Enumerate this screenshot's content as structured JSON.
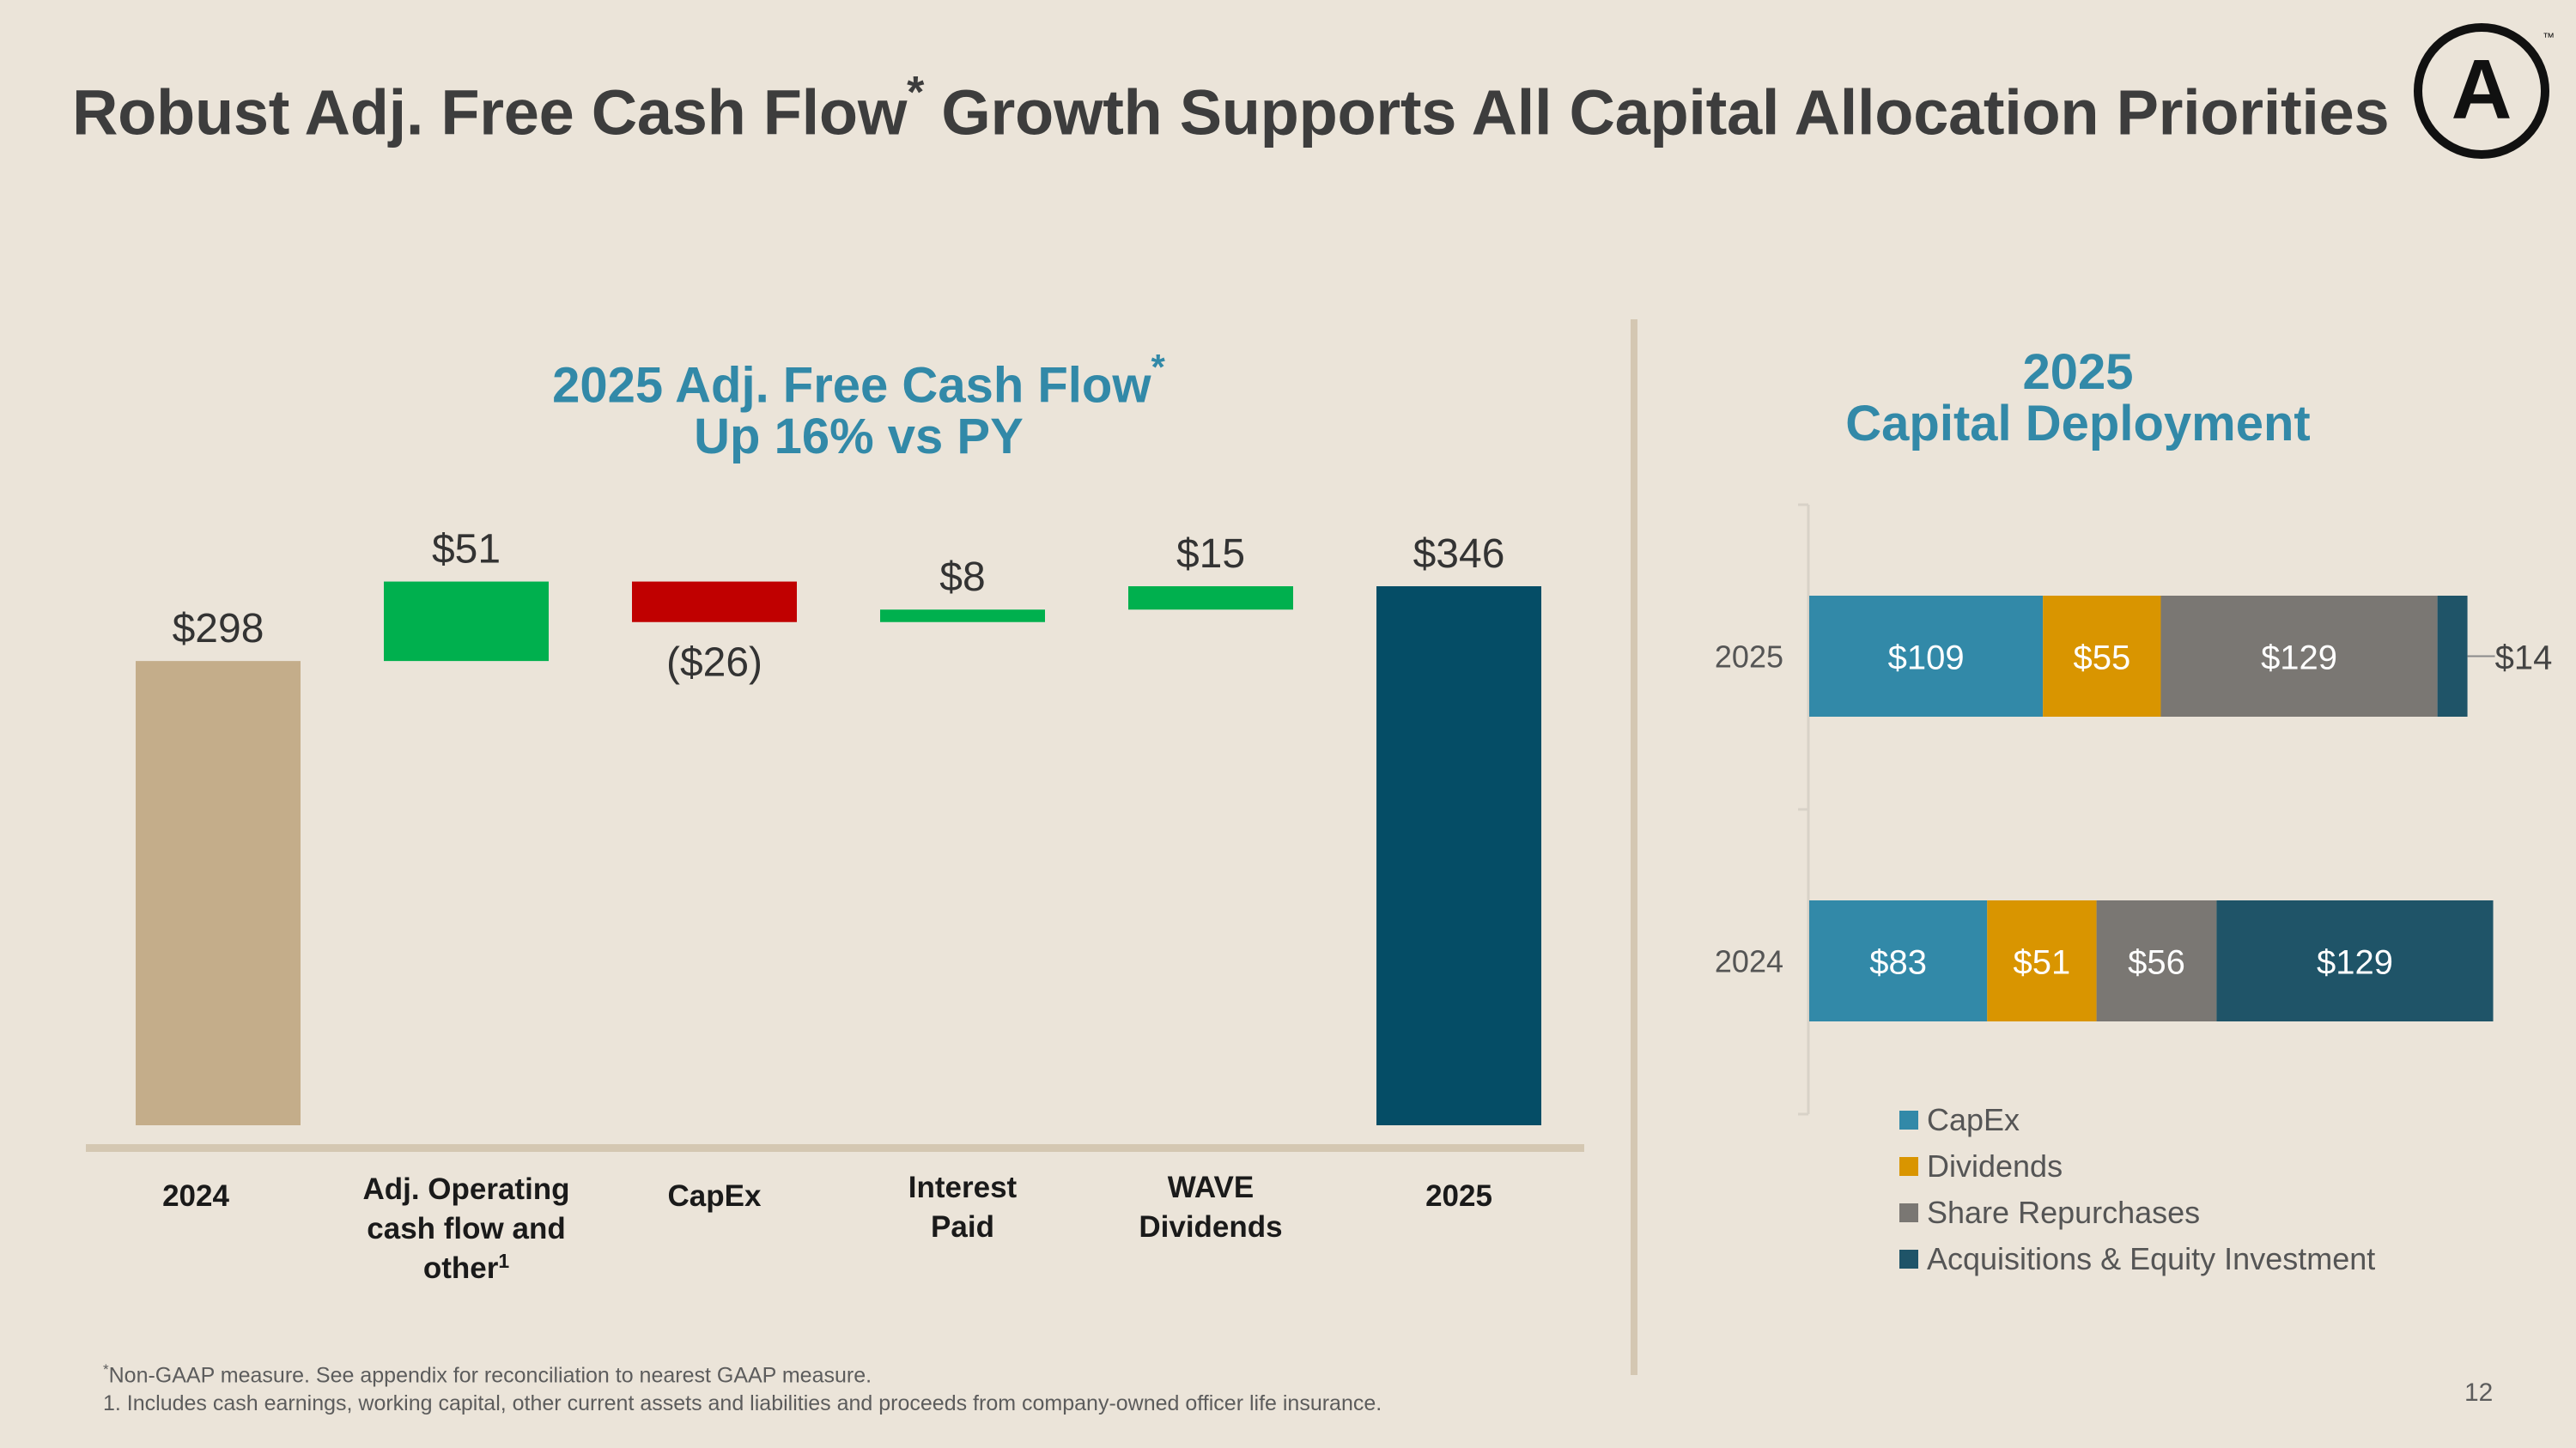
{
  "page": {
    "title": "Robust Adj. Free Cash Flow",
    "title_mark": "*",
    "title_rest": " Growth Supports All Capital Allocation Priorities",
    "logo_letter": "A",
    "logo_tm": "™",
    "page_number": "12"
  },
  "footnotes": {
    "mark": "*",
    "note1": "Non-GAAP measure. See appendix for reconciliation to nearest GAAP measure.",
    "note2": "1. Includes cash earnings, working capital, other current assets and liabilities and proceeds from company-owned officer life insurance."
  },
  "chart_data": [
    {
      "type": "bar",
      "subtype": "waterfall",
      "title_line1": "2025 Adj. Free Cash Flow",
      "title_mark": "*",
      "title_line2": "Up 16% vs PY",
      "units": "$M",
      "steps": [
        {
          "name": "2024",
          "label_lines": [
            "2024"
          ],
          "kind": "total",
          "value": 298,
          "display": "$298",
          "color": "#c4ad8a"
        },
        {
          "name": "adj-operating-cash-flow",
          "label_lines": [
            "Adj. Operating",
            "cash flow and",
            "other"
          ],
          "label_sup": "1",
          "kind": "delta",
          "value": 51,
          "display": "$51",
          "color": "#00b04e"
        },
        {
          "name": "capex",
          "label_lines": [
            "CapEx"
          ],
          "kind": "delta",
          "value": -26,
          "display": "($26)",
          "color": "#c00000"
        },
        {
          "name": "interest-paid",
          "label_lines": [
            "Interest",
            "Paid"
          ],
          "kind": "delta",
          "value": 8,
          "display": "$8",
          "color": "#00b04e"
        },
        {
          "name": "wave-dividends",
          "label_lines": [
            "WAVE",
            "Dividends"
          ],
          "kind": "delta",
          "value": 15,
          "display": "$15",
          "color": "#00b04e"
        },
        {
          "name": "2025",
          "label_lines": [
            "2025"
          ],
          "kind": "total",
          "value": 346,
          "display": "$346",
          "color": "#054d66"
        }
      ]
    },
    {
      "type": "bar",
      "subtype": "stacked-horizontal",
      "title_line1": "2025",
      "title_line2": "Capital Deployment",
      "units": "$M",
      "categories": [
        "2025",
        "2024"
      ],
      "series": [
        {
          "name": "CapEx",
          "color": "#3289a8",
          "values": [
            109,
            83
          ]
        },
        {
          "name": "Dividends",
          "color": "#d99500",
          "values": [
            55,
            51
          ]
        },
        {
          "name": "Share Repurchases",
          "color": "#7a7773",
          "values": [
            129,
            56
          ]
        },
        {
          "name": "Acquisitions & Equity Investment",
          "color": "#1f5468",
          "values": [
            14,
            129
          ]
        }
      ],
      "value_labels": [
        [
          "$109",
          "$55",
          "$129",
          "$14"
        ],
        [
          "$83",
          "$51",
          "$56",
          "$129"
        ]
      ]
    }
  ]
}
